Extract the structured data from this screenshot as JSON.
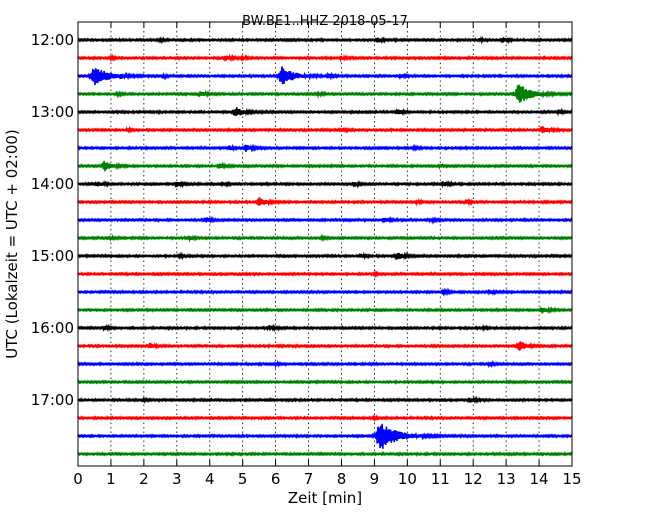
{
  "chart_data": {
    "type": "line",
    "title": "BW.BE1..HHZ 2018-05-17",
    "xlabel": "Zeit  [min]",
    "ylabel": "UTC (Lokalzeit = UTC + 02:00)",
    "xlim": [
      0,
      15
    ],
    "x_ticks": [
      "0",
      "1",
      "2",
      "3",
      "4",
      "5",
      "6",
      "7",
      "8",
      "9",
      "10",
      "11",
      "12",
      "13",
      "14",
      "15"
    ],
    "y_ticks": [
      "12:00",
      "13:00",
      "14:00",
      "15:00",
      "16:00",
      "17:00"
    ],
    "grid": true,
    "trace_colors": [
      "#000000",
      "#ff0000",
      "#0000ff",
      "#008000"
    ],
    "traces": [
      {
        "start": "12:00",
        "events": [
          [
            2.5,
            0.1
          ],
          [
            9.1,
            0.25
          ],
          [
            12.2,
            0.15
          ],
          [
            12.9,
            0.25
          ]
        ]
      },
      {
        "start": "12:15",
        "events": [
          [
            1.0,
            0.15
          ],
          [
            4.5,
            0.25
          ],
          [
            5.0,
            0.2
          ],
          [
            8.0,
            0.2
          ]
        ]
      },
      {
        "start": "12:30",
        "events": [
          [
            0.5,
            1.1
          ],
          [
            1.3,
            0.2
          ],
          [
            2.6,
            0.15
          ],
          [
            6.2,
            1.0
          ],
          [
            7.6,
            0.2
          ],
          [
            9.8,
            0.2
          ]
        ]
      },
      {
        "start": "12:45",
        "events": [
          [
            1.2,
            0.15
          ],
          [
            3.7,
            0.3
          ],
          [
            7.3,
            0.15
          ],
          [
            13.4,
            1.1
          ]
        ]
      },
      {
        "start": "13:00",
        "events": [
          [
            4.8,
            0.55
          ],
          [
            9.7,
            0.3
          ],
          [
            14.6,
            0.2
          ]
        ]
      },
      {
        "start": "13:15",
        "events": [
          [
            1.5,
            0.15
          ],
          [
            8.0,
            0.2
          ],
          [
            14.1,
            0.4
          ]
        ]
      },
      {
        "start": "13:30",
        "events": [
          [
            4.6,
            0.2
          ],
          [
            5.1,
            0.35
          ],
          [
            10.2,
            0.15
          ]
        ]
      },
      {
        "start": "13:45",
        "events": [
          [
            0.8,
            0.55
          ],
          [
            4.3,
            0.25
          ],
          [
            11.0,
            0.15
          ]
        ]
      },
      {
        "start": "14:00",
        "events": [
          [
            0.6,
            0.3
          ],
          [
            3.0,
            0.3
          ],
          [
            4.4,
            0.2
          ],
          [
            8.4,
            0.2
          ],
          [
            11.1,
            0.25
          ]
        ]
      },
      {
        "start": "14:15",
        "events": [
          [
            5.5,
            0.5
          ],
          [
            10.3,
            0.15
          ],
          [
            11.8,
            0.2
          ]
        ]
      },
      {
        "start": "14:30",
        "events": [
          [
            3.9,
            0.25
          ],
          [
            9.3,
            0.25
          ],
          [
            10.7,
            0.2
          ]
        ]
      },
      {
        "start": "14:45",
        "events": [
          [
            1.0,
            0.15
          ],
          [
            3.4,
            0.2
          ],
          [
            7.4,
            0.15
          ]
        ]
      },
      {
        "start": "15:00",
        "events": [
          [
            3.1,
            0.15
          ],
          [
            8.6,
            0.2
          ],
          [
            9.7,
            0.4
          ]
        ]
      },
      {
        "start": "15:15",
        "events": [
          [
            9.0,
            0.1
          ]
        ]
      },
      {
        "start": "15:30",
        "events": [
          [
            11.1,
            0.2
          ],
          [
            12.5,
            0.2
          ]
        ]
      },
      {
        "start": "15:45",
        "events": [
          [
            14.1,
            0.35
          ]
        ]
      },
      {
        "start": "16:00",
        "events": [
          [
            0.8,
            0.2
          ],
          [
            5.8,
            0.25
          ],
          [
            12.3,
            0.1
          ]
        ]
      },
      {
        "start": "16:15",
        "events": [
          [
            2.2,
            0.25
          ],
          [
            13.4,
            0.55
          ]
        ]
      },
      {
        "start": "16:30",
        "events": [
          [
            6.0,
            0.15
          ],
          [
            12.5,
            0.2
          ]
        ]
      },
      {
        "start": "16:45",
        "events": []
      },
      {
        "start": "17:00",
        "events": [
          [
            2.0,
            0.1
          ],
          [
            11.9,
            0.25
          ]
        ]
      },
      {
        "start": "17:15",
        "events": [
          [
            9.0,
            0.1
          ]
        ]
      },
      {
        "start": "17:30",
        "events": [
          [
            9.2,
            1.5
          ]
        ]
      },
      {
        "start": "17:45",
        "events": []
      }
    ]
  }
}
